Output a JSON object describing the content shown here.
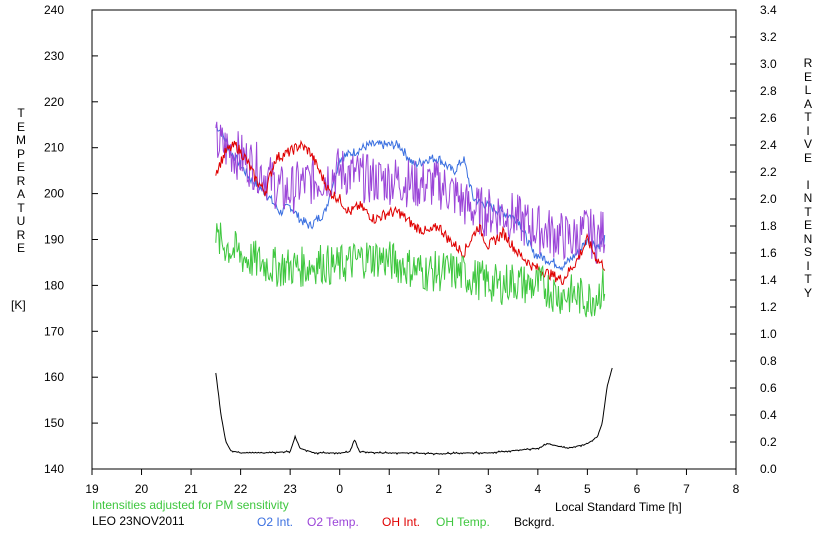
{
  "chart_data": {
    "type": "line",
    "left_axis": {
      "label": "TEMPERATURE",
      "unit": "[K]",
      "range": [
        140,
        240
      ],
      "ticks": [
        "240",
        "230",
        "220",
        "210",
        "200",
        "190",
        "180",
        "170",
        "160",
        "150",
        "140"
      ]
    },
    "right_axis": {
      "label": "RELATIVE INTENSITY",
      "range": [
        0.0,
        3.4
      ],
      "ticks": [
        "3.4",
        "3.2",
        "3.0",
        "2.8",
        "2.6",
        "2.4",
        "2.2",
        "2.0",
        "1.8",
        "1.6",
        "1.4",
        "1.2",
        "1.0",
        "0.8",
        "0.6",
        "0.4",
        "0.2",
        "0.0"
      ]
    },
    "x_axis": {
      "label": "Local Standard Time [h]",
      "range": [
        19,
        32
      ],
      "ticks": [
        "19",
        "20",
        "21",
        "22",
        "23",
        "0",
        "1",
        "2",
        "3",
        "4",
        "5",
        "6",
        "7",
        "8"
      ]
    },
    "grid": false,
    "annotation": "Intensities adjusted for PM sensitivity",
    "station": "LEO 23NOV2011",
    "series": [
      {
        "name": "O2 Int.",
        "axis": "right",
        "color": "#3a6fe0",
        "x": [
          21.5,
          21.6,
          21.8,
          22.0,
          22.2,
          22.5,
          22.8,
          23.0,
          23.2,
          23.4,
          23.7,
          24.0,
          24.3,
          24.6,
          25.0,
          25.2,
          25.5,
          25.8,
          26.0,
          26.3,
          26.5,
          26.7,
          27.0,
          27.3,
          27.6,
          27.9,
          28.2,
          28.5,
          28.8,
          29.0,
          29.2,
          29.35
        ],
        "y": [
          2.55,
          2.5,
          2.35,
          2.25,
          2.15,
          2.05,
          1.9,
          1.95,
          1.85,
          1.8,
          1.9,
          2.3,
          2.35,
          2.4,
          2.4,
          2.4,
          2.25,
          2.3,
          2.3,
          2.2,
          2.3,
          2.0,
          1.95,
          1.9,
          1.85,
          1.6,
          1.55,
          1.5,
          1.6,
          1.7,
          1.65,
          1.7
        ]
      },
      {
        "name": "O2 Temp.",
        "axis": "left",
        "color": "#9b45d8",
        "x": [
          21.5,
          21.7,
          22.0,
          22.3,
          22.6,
          22.9,
          23.2,
          23.5,
          23.8,
          24.0,
          24.3,
          24.6,
          24.9,
          25.2,
          25.5,
          25.8,
          26.0,
          26.3,
          26.6,
          26.9,
          27.2,
          27.5,
          27.8,
          28.1,
          28.4,
          28.7,
          29.0,
          29.2,
          29.35
        ],
        "y": [
          211,
          210,
          208,
          206,
          203,
          200,
          202,
          203,
          204,
          205,
          204,
          203,
          203,
          203,
          202,
          202,
          202,
          200,
          197,
          196,
          196,
          195,
          193,
          192,
          191,
          190,
          192,
          190,
          192
        ]
      },
      {
        "name": "OH Int.",
        "axis": "right",
        "color": "#e00000",
        "x": [
          21.5,
          21.7,
          21.9,
          22.1,
          22.3,
          22.5,
          22.7,
          23.0,
          23.2,
          23.4,
          23.6,
          23.8,
          24.0,
          24.2,
          24.4,
          24.7,
          25.0,
          25.2,
          25.5,
          25.8,
          26.0,
          26.2,
          26.5,
          26.8,
          27.0,
          27.3,
          27.6,
          27.9,
          28.2,
          28.5,
          28.8,
          29.0,
          29.2,
          29.35
        ],
        "y": [
          2.2,
          2.35,
          2.4,
          2.3,
          2.15,
          2.05,
          2.3,
          2.35,
          2.4,
          2.35,
          2.2,
          2.05,
          2.0,
          1.9,
          1.95,
          1.85,
          1.9,
          1.9,
          1.8,
          1.75,
          1.8,
          1.7,
          1.6,
          1.8,
          1.65,
          1.75,
          1.6,
          1.5,
          1.45,
          1.4,
          1.55,
          1.7,
          1.55,
          1.5
        ]
      },
      {
        "name": "OH Temp.",
        "axis": "left",
        "color": "#3fc73f",
        "x": [
          21.5,
          21.8,
          22.1,
          22.4,
          22.7,
          23.0,
          23.3,
          23.6,
          23.9,
          24.2,
          24.5,
          24.8,
          25.1,
          25.4,
          25.7,
          26.0,
          26.3,
          26.6,
          26.9,
          27.2,
          27.5,
          27.8,
          28.1,
          28.4,
          28.7,
          29.0,
          29.2,
          29.35
        ],
        "y": [
          190,
          188,
          186,
          185,
          184,
          184,
          184,
          185,
          184,
          185,
          186,
          186,
          185,
          184,
          183,
          183,
          183,
          182,
          181,
          180,
          181,
          180,
          180,
          178,
          178,
          177,
          178,
          180
        ]
      },
      {
        "name": "Bckgrd.",
        "axis": "left",
        "color": "#000000",
        "x": [
          21.5,
          21.6,
          21.7,
          21.8,
          22.0,
          22.5,
          23.0,
          23.1,
          23.2,
          23.5,
          24.0,
          24.2,
          24.3,
          24.4,
          24.8,
          25.5,
          26.0,
          26.5,
          27.0,
          27.5,
          28.0,
          28.2,
          28.4,
          28.6,
          28.8,
          29.0,
          29.2,
          29.3,
          29.4,
          29.5
        ],
        "y": [
          161,
          152,
          146,
          144,
          143.5,
          143.5,
          143.8,
          147,
          144.5,
          143.5,
          143.5,
          143.7,
          146.5,
          143.8,
          143.5,
          143.5,
          143.3,
          143.5,
          143.5,
          144,
          144.5,
          145.5,
          145,
          144.5,
          145,
          145.5,
          147,
          150,
          158,
          162
        ]
      }
    ]
  }
}
